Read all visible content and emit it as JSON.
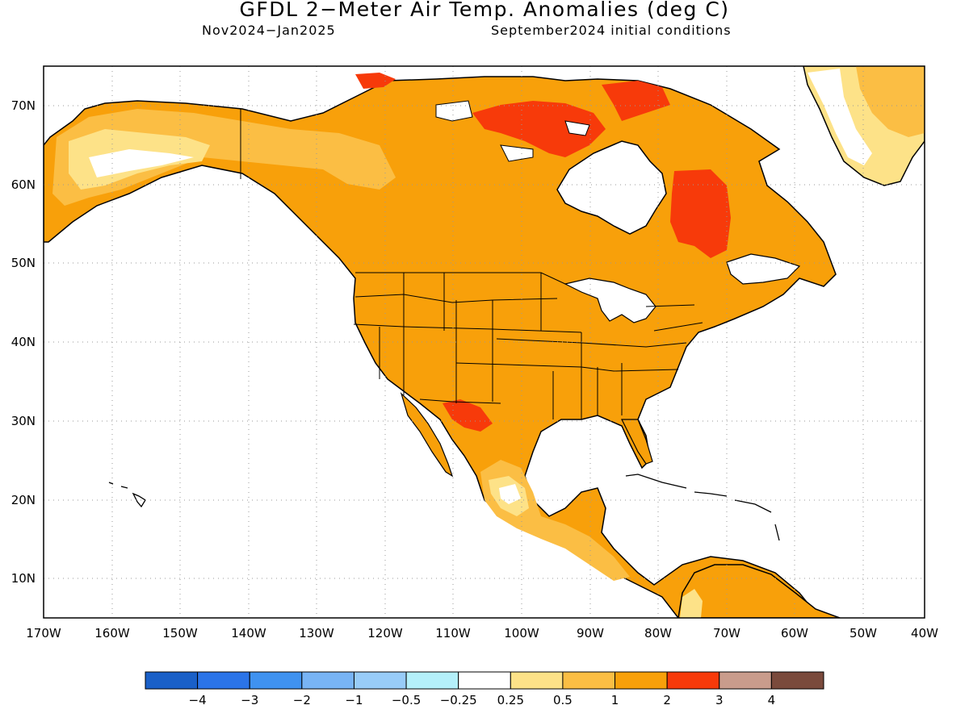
{
  "header": {
    "title": "GFDL 2−Meter Air Temp. Anomalies (deg C)",
    "period": "Nov2024−Jan2025",
    "init": "September2024 initial conditions"
  },
  "axes": {
    "lat_labels": [
      "70N",
      "60N",
      "50N",
      "40N",
      "30N",
      "20N",
      "10N"
    ],
    "lon_labels": [
      "170W",
      "160W",
      "150W",
      "140W",
      "130W",
      "120W",
      "110W",
      "100W",
      "90W",
      "80W",
      "70W",
      "60W",
      "50W",
      "40W"
    ]
  },
  "colorbar": {
    "colors": [
      "#1a60c8",
      "#2b74e8",
      "#3f92f0",
      "#78b4f5",
      "#98ccf8",
      "#b4f0fa",
      "#ffffff",
      "#fde288",
      "#fbbe44",
      "#f8a00a",
      "#f73a0a",
      "#c99c8c",
      "#7a4a3c"
    ],
    "labels": [
      "−4",
      "−3",
      "−2",
      "−1",
      "−0.5",
      "−0.25",
      "0.25",
      "0.5",
      "1",
      "2",
      "3",
      "4"
    ]
  },
  "legend_colors": {
    "ocean": "#ffffff",
    "anomaly_1_2": "#f8a00a",
    "anomaly_0_5_1": "#fbbe44",
    "anomaly_0_25_0_5": "#fde288",
    "anomaly_2_3": "#f73a0a"
  }
}
